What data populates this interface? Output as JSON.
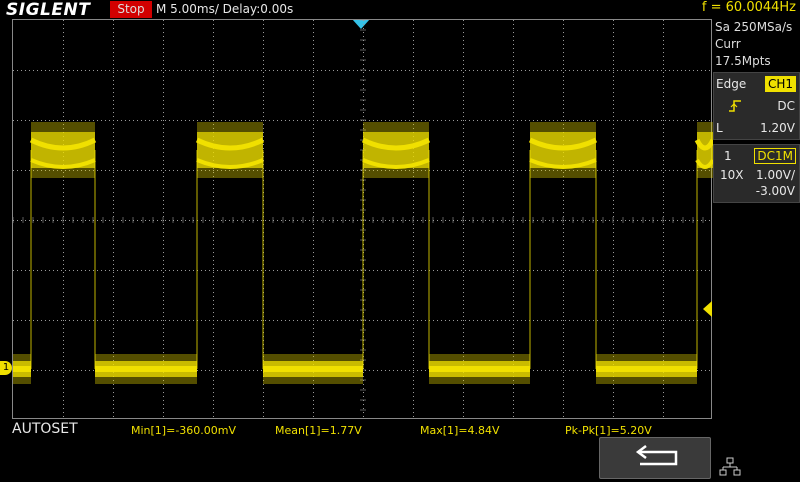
{
  "header": {
    "brand": "SIGLENT",
    "run_state": "Stop",
    "timebase": "M 5.00ms/ Delay:0.00s",
    "frequency": "f = 60.0044Hz"
  },
  "side_panel": {
    "sample_rate": "Sa 250MSa/s",
    "memory": "Curr 17.5Mpts",
    "trigger": {
      "type_label": "Edge",
      "source": "CH1",
      "coupling": "DC",
      "level_label": "L",
      "level_value": "1.20V",
      "slope_icon": "rising-edge-icon"
    },
    "channel": {
      "number": "1",
      "coupling": "DC1M",
      "probe": "10X",
      "scale": "1.00V/",
      "offset": "-3.00V"
    }
  },
  "bottom": {
    "mode": "AUTOSET",
    "measurements": [
      {
        "label": "Min[1]=-360.00mV"
      },
      {
        "label": "Mean[1]=1.77V"
      },
      {
        "label": "Max[1]=4.84V"
      },
      {
        "label": "Pk-Pk[1]=5.20V"
      }
    ],
    "back_icon": "return-arrow-icon",
    "network_icon": "network-icon"
  },
  "colors": {
    "trace": "#f0e000",
    "trigger_marker": "#35c2e8",
    "stop": "#d20000",
    "grid": "#9a9a9a"
  },
  "channel_marker": "1"
}
